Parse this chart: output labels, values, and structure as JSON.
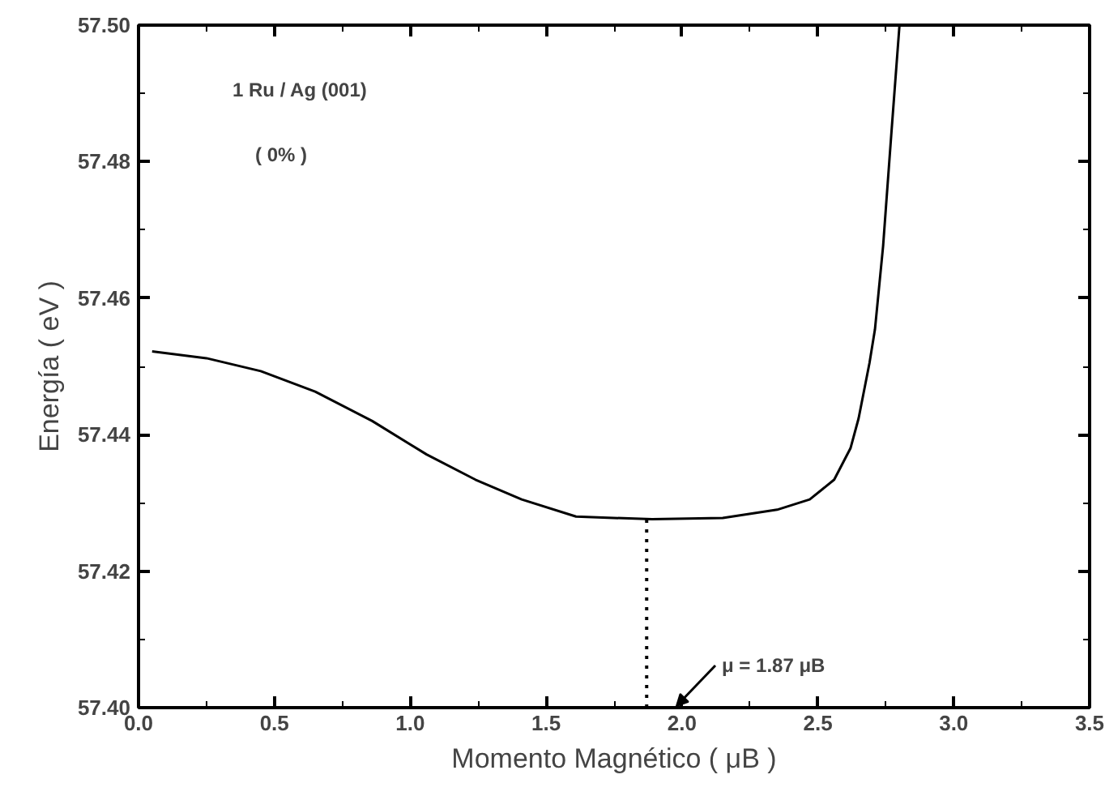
{
  "chart_data": {
    "type": "line",
    "xlabel": "Momento Magnético ( μB )",
    "ylabel": "Energía ( eV )",
    "x": [
      0.05,
      0.25,
      0.45,
      0.65,
      0.86,
      1.06,
      1.24,
      1.41,
      1.61,
      1.89,
      2.15,
      2.35,
      2.47,
      2.56,
      2.62,
      2.65,
      2.69,
      2.71,
      2.74,
      2.77,
      2.8
    ],
    "series": [
      {
        "color": "#000000",
        "values": [
          57.4522,
          57.4512,
          57.4493,
          57.4463,
          57.442,
          57.4371,
          57.4334,
          57.4305,
          57.428,
          57.4276,
          57.4278,
          57.429,
          57.4305,
          57.4334,
          57.438,
          57.4424,
          57.4505,
          57.4554,
          57.4676,
          57.4839,
          57.4998
        ]
      }
    ],
    "xlim": [
      0.0,
      3.5
    ],
    "xticks": [
      {
        "value": 0.0,
        "label": "0.0"
      },
      0.5,
      {
        "value": 1.0,
        "label": "1.0"
      },
      1.5,
      {
        "value": 2.0,
        "label": "2.0"
      },
      2.5,
      {
        "value": 3.0,
        "label": "3.0"
      },
      3.5
    ],
    "ylim": [
      57.4,
      57.5
    ],
    "yticks": [
      {
        "value": 57.4,
        "label": "57.40"
      },
      57.42,
      57.44,
      57.46,
      57.48,
      {
        "value": 57.5,
        "label": "57.50"
      }
    ],
    "grid": false,
    "marker": "none",
    "line_style": "solid",
    "ref_lines": [
      {
        "axis": "x",
        "value": 1.87,
        "line_style": "dotted",
        "color": "#000000"
      }
    ],
    "annotations": [
      "1 Ru / Ag (001)",
      "( 0% )",
      "μ = 1.87 μB"
    ]
  }
}
